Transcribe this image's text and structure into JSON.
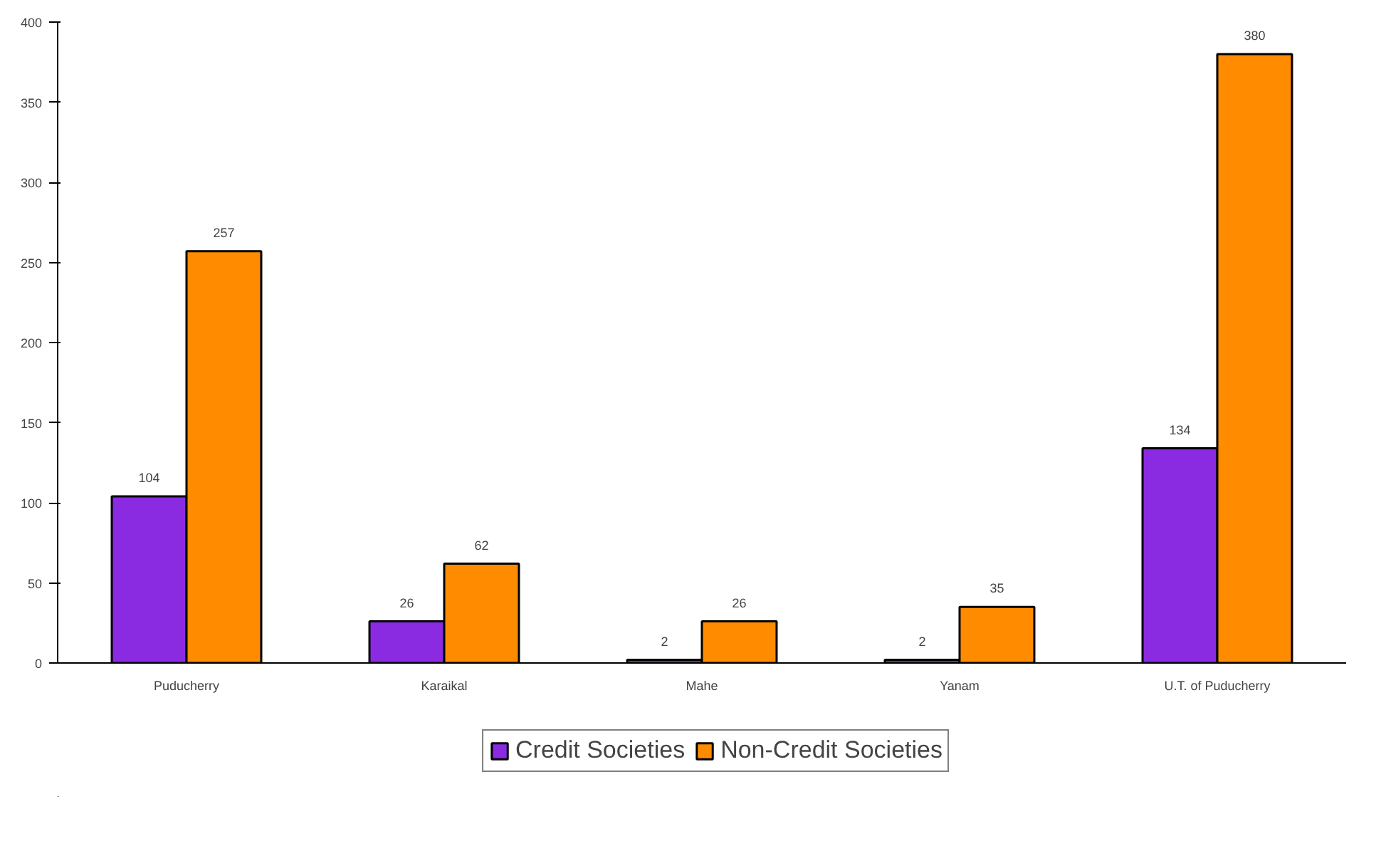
{
  "chart_data": {
    "type": "bar",
    "categories": [
      "Puducherry",
      "Karaikal",
      "Mahe",
      "Yanam",
      "U.T. of Puducherry"
    ],
    "series": [
      {
        "name": "Credit Societies",
        "color": "#8a2be2",
        "values": [
          104,
          26,
          2,
          2,
          134
        ]
      },
      {
        "name": "Non-Credit Societies",
        "color": "#ff8c00",
        "values": [
          257,
          62,
          26,
          35,
          380
        ]
      }
    ],
    "ylim": [
      0,
      400
    ],
    "yticks": [
      0,
      50,
      100,
      150,
      200,
      250,
      300,
      350,
      400
    ],
    "data_labels": true,
    "legend": "bottom",
    "grid": false
  }
}
